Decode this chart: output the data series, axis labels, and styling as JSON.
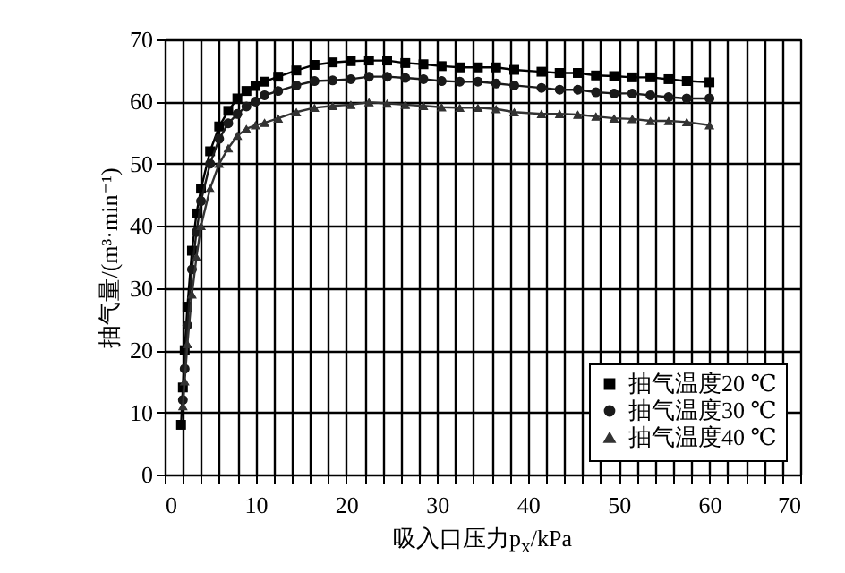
{
  "chart_data": {
    "type": "line",
    "xlabel": "吸入口压力p$_{x}$/kPa",
    "ylabel": "抽气量/(m³·min⁻¹)",
    "x": [
      1.8,
      2,
      2.2,
      2.5,
      3,
      3.5,
      4,
      5,
      6,
      7,
      8,
      9,
      10,
      11,
      12.5,
      14.5,
      16.5,
      18.5,
      20.5,
      22.5,
      24.5,
      26.5,
      28.5,
      30.5,
      32.5,
      34.5,
      36.5,
      38.5,
      41.5,
      43.5,
      45.5,
      47.5,
      49.5,
      51.5,
      53.5,
      55.5,
      57.5,
      60
    ],
    "series": [
      {
        "name": "抽气温度20 ℃",
        "color": "#000000",
        "marker": "square",
        "values": [
          8,
          14,
          20,
          27,
          36,
          42,
          46,
          52,
          56,
          58.5,
          60.5,
          61.7,
          62.5,
          63.2,
          64,
          65,
          65.9,
          66.3,
          66.5,
          66.6,
          66.6,
          66.2,
          66,
          65.7,
          65.5,
          65.5,
          65.5,
          65.1,
          64.8,
          64.6,
          64.6,
          64.2,
          64.1,
          63.9,
          63.9,
          63.6,
          63.3,
          63.1
        ]
      },
      {
        "name": "抽气温度30 ℃",
        "color": "#1a1a1a",
        "marker": "circle",
        "values": [
          null,
          12,
          17,
          24,
          33,
          39,
          44,
          50,
          54,
          56.5,
          58,
          59.2,
          60,
          61,
          61.7,
          62.6,
          63.3,
          63.4,
          63.6,
          64,
          64,
          63.8,
          63.6,
          63.3,
          63.2,
          63.2,
          62.9,
          62.6,
          62.2,
          61.9,
          61.9,
          61.5,
          61.3,
          61.3,
          61,
          60.7,
          60.5,
          60.5
        ]
      },
      {
        "name": "抽气温度40 ℃",
        "color": "#333333",
        "marker": "triangle",
        "values": [
          null,
          11,
          15,
          21,
          29,
          35,
          40,
          46,
          50,
          52.5,
          54.5,
          55.6,
          56.2,
          56.6,
          57.3,
          58.3,
          59,
          59.3,
          59.5,
          59.9,
          59.7,
          59.5,
          59.3,
          59.1,
          59,
          59,
          58.8,
          58.3,
          58,
          58,
          57.9,
          57.6,
          57.3,
          57.2,
          56.9,
          56.9,
          56.7,
          56.2
        ]
      }
    ],
    "xlim": [
      0,
      70
    ],
    "ylim": [
      0,
      70
    ],
    "xticks": [
      0,
      {
        "value": 2,
        "label": null
      },
      {
        "value": 4,
        "label": null
      },
      {
        "value": 6,
        "label": null
      },
      {
        "value": 8,
        "label": null
      },
      10,
      {
        "value": 12,
        "label": null
      },
      {
        "value": 14,
        "label": null
      },
      {
        "value": 16,
        "label": null
      },
      {
        "value": 18,
        "label": null
      },
      20,
      {
        "value": 22,
        "label": null
      },
      {
        "value": 24,
        "label": null
      },
      {
        "value": 26,
        "label": null
      },
      {
        "value": 28,
        "label": null
      },
      30,
      {
        "value": 32,
        "label": null
      },
      {
        "value": 34,
        "label": null
      },
      {
        "value": 36,
        "label": null
      },
      {
        "value": 38,
        "label": null
      },
      40,
      {
        "value": 42,
        "label": null
      },
      {
        "value": 44,
        "label": null
      },
      {
        "value": 46,
        "label": null
      },
      {
        "value": 48,
        "label": null
      },
      50,
      {
        "value": 52,
        "label": null
      },
      {
        "value": 54,
        "label": null
      },
      {
        "value": 56,
        "label": null
      },
      {
        "value": 58,
        "label": null
      },
      60,
      {
        "value": 62,
        "label": null
      },
      {
        "value": 64,
        "label": null
      },
      {
        "value": 66,
        "label": null
      },
      {
        "value": 68,
        "label": null
      },
      70
    ],
    "yticks": [
      0,
      10,
      20,
      30,
      40,
      50,
      60,
      70
    ],
    "grid": true,
    "legend": "bottom right",
    "line_style": "solid"
  }
}
